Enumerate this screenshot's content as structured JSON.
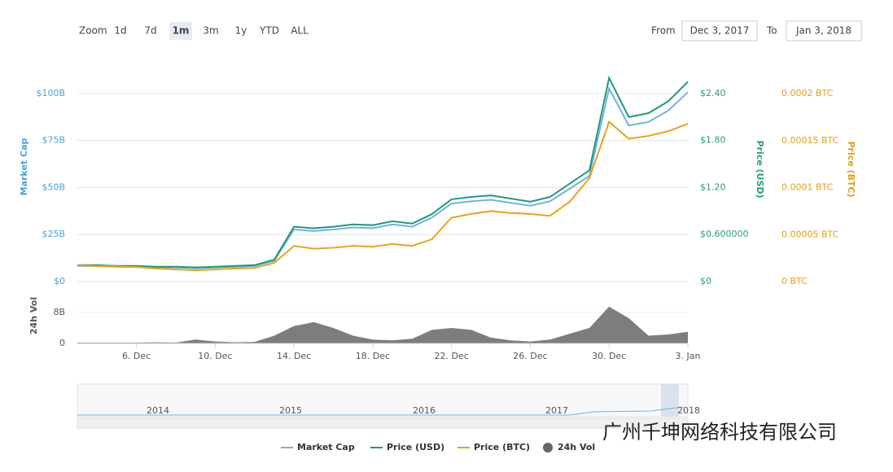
{
  "chart_data": {
    "type": "line",
    "zoom": {
      "label": "Zoom",
      "buttons": [
        "1d",
        "7d",
        "1m",
        "3m",
        "1y",
        "YTD",
        "ALL"
      ],
      "active": "1m"
    },
    "range": {
      "from_label": "From",
      "from": "Dec 3, 2017",
      "to_label": "To",
      "to": "Jan 3, 2018"
    },
    "x": [
      null,
      null,
      null,
      "6. Dec",
      null,
      null,
      null,
      "10. Dec",
      null,
      null,
      null,
      "14. Dec",
      null,
      null,
      null,
      "18. Dec",
      null,
      null,
      null,
      "22. Dec",
      null,
      null,
      null,
      "26. Dec",
      null,
      null,
      null,
      "30. Dec",
      null,
      null,
      null,
      "3. Jan"
    ],
    "y_label": "Market Cap",
    "ylim": [
      0,
      122900000000
    ],
    "yticks": [
      {
        "value": 0,
        "label": "$0"
      },
      {
        "value": 25000000000,
        "label": "$25B"
      },
      {
        "value": 50000000000,
        "label": "$50B"
      },
      {
        "value": 75000000000,
        "label": "$75B"
      },
      {
        "value": 100000000000,
        "label": "$100B"
      }
    ],
    "y2_label": "Price (USD)",
    "y2lim": [
      0,
      2.95
    ],
    "y2ticks": [
      {
        "value": 0,
        "label": "$0"
      },
      {
        "value": 0.6,
        "label": "$0.600000"
      },
      {
        "value": 1.2,
        "label": "$1.20"
      },
      {
        "value": 1.8,
        "label": "$1.80"
      },
      {
        "value": 2.4,
        "label": "$2.40"
      }
    ],
    "y3_label": "Price (BTC)",
    "y3lim": [
      0,
      0.000246
    ],
    "y3ticks": [
      {
        "value": 0,
        "label": "0 BTC"
      },
      {
        "value": 5e-05,
        "label": "0.00005 BTC"
      },
      {
        "value": 0.0001,
        "label": "0.0001 BTC"
      },
      {
        "value": 0.00015,
        "label": "0.00015 BTC"
      },
      {
        "value": 0.0002,
        "label": "0.0002 BTC"
      }
    ],
    "grid": true,
    "series": [
      {
        "name": "Market Cap",
        "color": "#6fb3e0",
        "axis": "y",
        "values": [
          8300000000,
          8300000000,
          7900000000,
          7900000000,
          7500000000,
          7500000000,
          7100000000,
          7500000000,
          7900000000,
          8300000000,
          11100000000,
          27700000000,
          26900000000,
          27700000000,
          28800000000,
          28400000000,
          30400000000,
          29200000000,
          34000000000,
          41500000000,
          42700000000,
          43500000000,
          41900000000,
          40300000000,
          42700000000,
          49400000000,
          56100000000,
          102700000000,
          83000000000,
          84900000000,
          90900000000,
          100700000000
        ]
      },
      {
        "name": "Price (USD)",
        "color": "#1f9a7a",
        "axis": "y2",
        "values": [
          0.21,
          0.21,
          0.2,
          0.2,
          0.19,
          0.19,
          0.18,
          0.19,
          0.2,
          0.21,
          0.28,
          0.7,
          0.68,
          0.7,
          0.73,
          0.72,
          0.77,
          0.74,
          0.86,
          1.05,
          1.08,
          1.1,
          1.06,
          1.02,
          1.08,
          1.25,
          1.42,
          2.6,
          2.1,
          2.15,
          2.3,
          2.55
        ]
      },
      {
        "name": "Price (BTC)",
        "color": "#e8a21d",
        "axis": "y3",
        "values": [
          1.73e-05,
          1.65e-05,
          1.6e-05,
          1.55e-05,
          1.4e-05,
          1.3e-05,
          1.2e-05,
          1.3e-05,
          1.4e-05,
          1.45e-05,
          2e-05,
          3.8e-05,
          3.5e-05,
          3.6e-05,
          3.8e-05,
          3.7e-05,
          4e-05,
          3.8e-05,
          4.5e-05,
          6.8e-05,
          7.2e-05,
          7.5e-05,
          7.3e-05,
          7.2e-05,
          7e-05,
          8.5e-05,
          0.00011,
          0.00017,
          0.000152,
          0.000155,
          0.00016,
          0.000168
        ]
      }
    ],
    "volume": {
      "name": "24h Vol",
      "y_label": "24h Vol",
      "color": "#666666",
      "ylim": [
        0,
        14700000000
      ],
      "yticks": [
        0,
        {
          "value": 8000000000,
          "label": "8B"
        }
      ],
      "values": [
        200000000,
        200000000,
        200000000,
        200000000,
        300000000,
        200000000,
        1000000000,
        500000000,
        300000000,
        400000000,
        2000000000,
        4500000000,
        5500000000,
        4000000000,
        2000000000,
        1000000000,
        800000000,
        1200000000,
        3500000000,
        4000000000,
        3500000000,
        1500000000,
        800000000,
        500000000,
        1000000000,
        2500000000,
        4000000000,
        9500000000,
        6500000000,
        2000000000,
        2300000000,
        3000000000
      ]
    },
    "navigator": {
      "labels": [
        "2014",
        "2015",
        "2016",
        "2017",
        "2018"
      ]
    }
  },
  "watermark": "广州千坤网络科技有限公司"
}
